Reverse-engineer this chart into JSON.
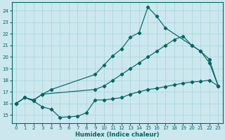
{
  "xlabel": "Humidex (Indice chaleur)",
  "bg_color": "#cce8ee",
  "line_color": "#006666",
  "grid_color": "#b0d8e0",
  "xlim": [
    -0.5,
    23.5
  ],
  "ylim": [
    14.3,
    24.7
  ],
  "xticks": [
    0,
    1,
    2,
    3,
    4,
    5,
    6,
    7,
    8,
    9,
    10,
    11,
    12,
    13,
    14,
    15,
    16,
    17,
    18,
    19,
    20,
    21,
    22,
    23
  ],
  "yticks": [
    15,
    16,
    17,
    18,
    19,
    20,
    21,
    22,
    23,
    24
  ],
  "line1_x": [
    0,
    1,
    2,
    3,
    4,
    9,
    10,
    11,
    12,
    13,
    14,
    15,
    16,
    17,
    20,
    21,
    22,
    23
  ],
  "line1_y": [
    16.0,
    16.5,
    16.3,
    16.8,
    17.2,
    18.5,
    19.3,
    20.1,
    20.7,
    21.7,
    22.1,
    24.3,
    23.5,
    22.5,
    21.0,
    20.5,
    19.5,
    17.5
  ],
  "line2_x": [
    0,
    1,
    2,
    3,
    9,
    10,
    11,
    12,
    13,
    14,
    15,
    16,
    17,
    18,
    19,
    20,
    21,
    22,
    23
  ],
  "line2_y": [
    16.0,
    16.5,
    16.3,
    16.8,
    17.2,
    17.5,
    18.0,
    18.5,
    19.0,
    19.5,
    20.0,
    20.5,
    21.0,
    21.5,
    21.8,
    21.0,
    20.5,
    19.8,
    17.5
  ],
  "line3_x": [
    0,
    1,
    2,
    3,
    4,
    5,
    6,
    7,
    8,
    9,
    10,
    11,
    12,
    13,
    14,
    15,
    16,
    17,
    18,
    19,
    20,
    21,
    22,
    23
  ],
  "line3_y": [
    16.0,
    16.5,
    16.2,
    15.7,
    15.5,
    14.8,
    14.85,
    14.9,
    15.2,
    16.3,
    16.3,
    16.4,
    16.5,
    16.8,
    17.0,
    17.2,
    17.3,
    17.45,
    17.6,
    17.75,
    17.85,
    17.9,
    18.0,
    17.5
  ]
}
